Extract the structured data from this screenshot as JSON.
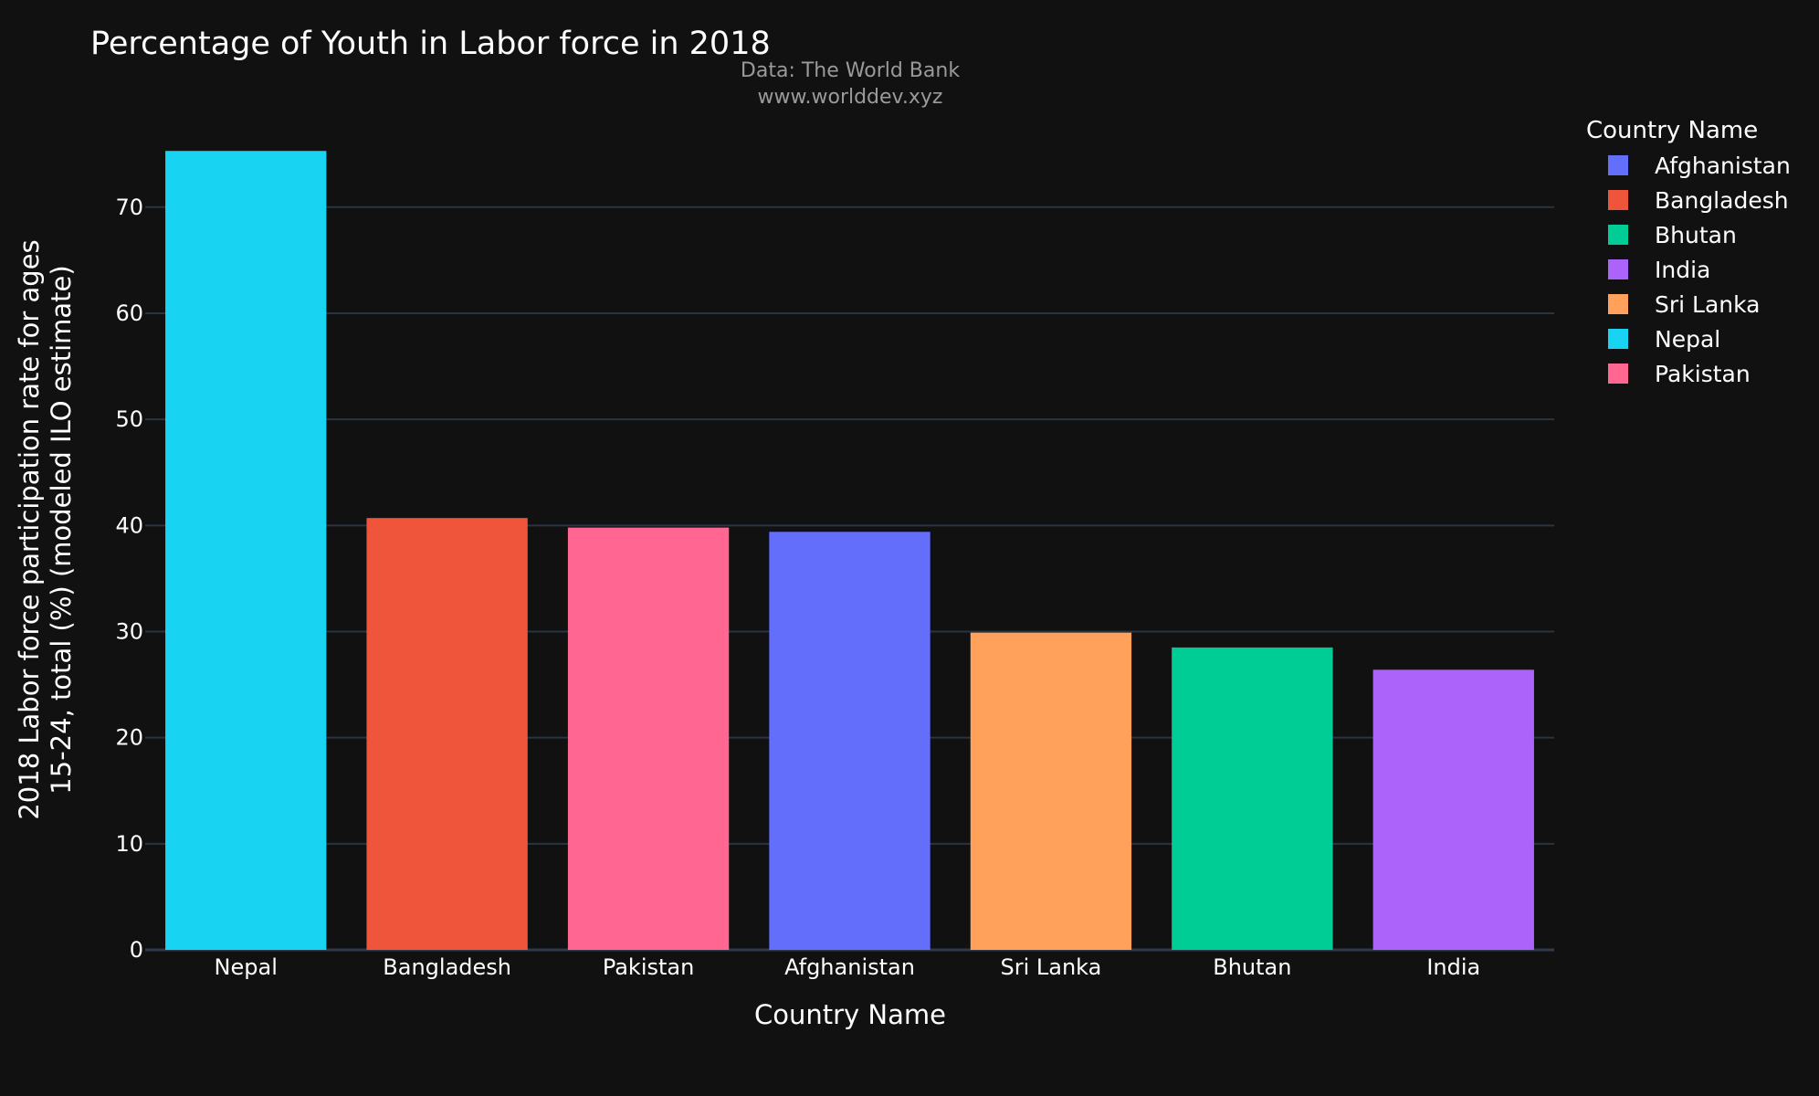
{
  "chart_data": {
    "type": "bar",
    "title": "Percentage of Youth in Labor force in 2018",
    "subtitle_lines": [
      "Data: The World Bank",
      "www.worlddev.xyz"
    ],
    "xlabel": "Country Name",
    "ylabel_lines": [
      "2018 Labor force participation rate for ages",
      "15-24, total (%) (modeled ILO estimate)"
    ],
    "ylim": [
      0,
      77.3
    ],
    "yticks": [
      0,
      10,
      20,
      30,
      40,
      50,
      60,
      70
    ],
    "grid": true,
    "categories": [
      "Nepal",
      "Bangladesh",
      "Pakistan",
      "Afghanistan",
      "Sri Lanka",
      "Bhutan",
      "India"
    ],
    "values": [
      75.3,
      40.7,
      39.8,
      39.4,
      29.9,
      28.5,
      26.4
    ],
    "bar_colors": [
      "#19d3f3",
      "#ef553b",
      "#ff6692",
      "#636efa",
      "#ffa15a",
      "#00cc96",
      "#ab63fa"
    ],
    "legend": {
      "title": "Country Name",
      "position": "right",
      "items": [
        {
          "name": "Afghanistan",
          "color": "#636efa"
        },
        {
          "name": "Bangladesh",
          "color": "#ef553b"
        },
        {
          "name": "Bhutan",
          "color": "#00cc96"
        },
        {
          "name": "India",
          "color": "#ab63fa"
        },
        {
          "name": "Sri Lanka",
          "color": "#ffa15a"
        },
        {
          "name": "Nepal",
          "color": "#19d3f3"
        },
        {
          "name": "Pakistan",
          "color": "#ff6692"
        }
      ]
    }
  }
}
